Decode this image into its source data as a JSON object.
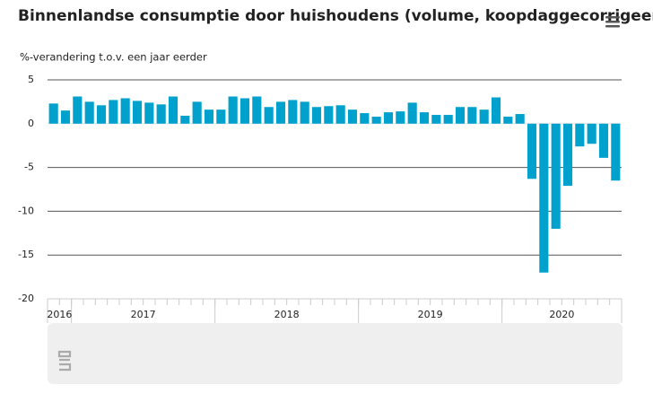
{
  "chart_data": {
    "type": "bar",
    "title": "Binnenlandse consumptie door huishoudens (volume, koopdaggecorrigeerd)",
    "subtitle": "%-verandering t.o.v. een jaar eerder",
    "categories": [
      "2016",
      "2016",
      "2017",
      "2017",
      "2017",
      "2017",
      "2017",
      "2017",
      "2017",
      "2017",
      "2017",
      "2017",
      "2017",
      "2017",
      "2018",
      "2018",
      "2018",
      "2018",
      "2018",
      "2018",
      "2018",
      "2018",
      "2018",
      "2018",
      "2018",
      "2018",
      "2019",
      "2019",
      "2019",
      "2019",
      "2019",
      "2019",
      "2019",
      "2019",
      "2019",
      "2019",
      "2019",
      "2019",
      "2020",
      "2020",
      "2020",
      "2020",
      "2020",
      "2020",
      "2020",
      "2020",
      "2020",
      "2020"
    ],
    "values": [
      2.3,
      1.5,
      3.1,
      2.5,
      2.1,
      2.7,
      2.9,
      2.6,
      2.4,
      2.2,
      3.1,
      0.9,
      2.5,
      1.6,
      1.6,
      3.1,
      2.9,
      3.1,
      1.9,
      2.5,
      2.7,
      2.5,
      1.9,
      2.0,
      2.1,
      1.6,
      1.2,
      0.8,
      1.3,
      1.4,
      2.4,
      1.3,
      1.0,
      1.0,
      1.9,
      1.9,
      1.6,
      3.0,
      0.8,
      1.1,
      -6.3,
      -17.0,
      -12.0,
      -7.1,
      -2.6,
      -2.3,
      -3.9,
      -6.5
    ],
    "color": "#00a1cd",
    "ylim": [
      -20,
      5
    ],
    "yticks": [
      -20,
      -15,
      -10,
      -5,
      0,
      5
    ],
    "grid": true
  }
}
